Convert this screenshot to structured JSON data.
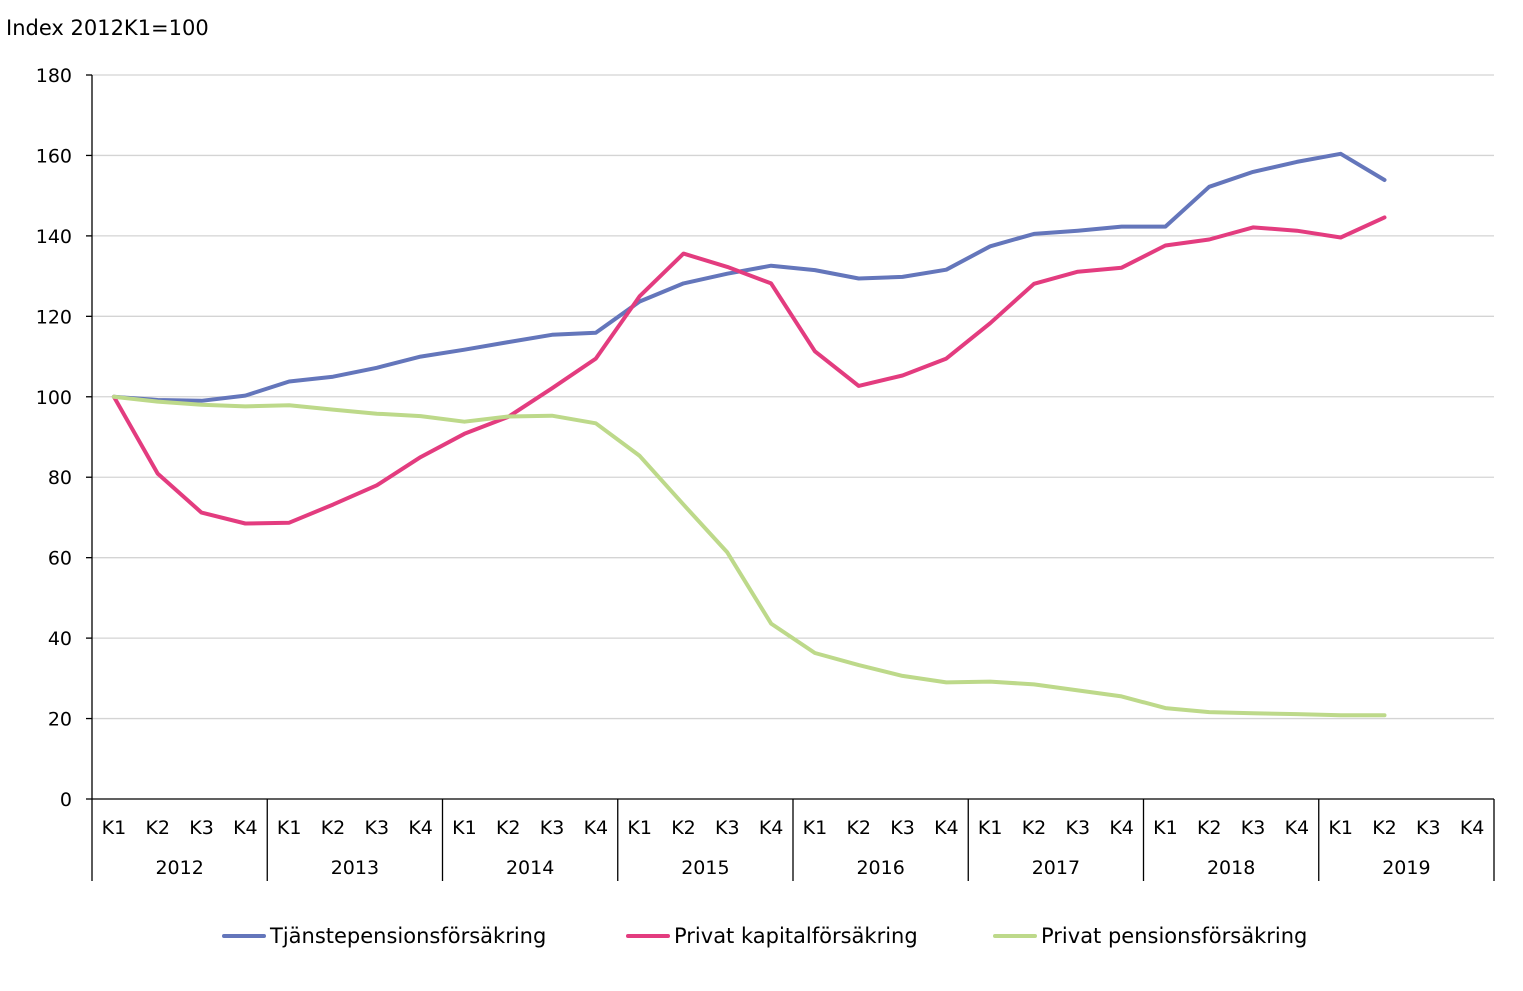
{
  "chart_data": {
    "type": "line",
    "ylabel": "Index 2012K1=100",
    "ylim": [
      0,
      180
    ],
    "yticks": [
      0,
      20,
      40,
      60,
      80,
      100,
      120,
      140,
      160,
      180
    ],
    "grid": true,
    "legend_position": "bottom",
    "years": [
      "2012",
      "2013",
      "2014",
      "2015",
      "2016",
      "2017",
      "2018",
      "2019"
    ],
    "quarters": [
      "K1",
      "K2",
      "K3",
      "K4"
    ],
    "series": [
      {
        "name": "Tjänstepensionsförsäkring",
        "color": "#6476BB",
        "values": [
          100,
          99.2,
          99.0,
          100.3,
          103.8,
          105.0,
          107.2,
          110.0,
          111.7,
          113.6,
          115.4,
          115.9,
          123.7,
          128.2,
          130.6,
          132.6,
          131.5,
          129.4,
          129.8,
          131.6,
          137.4,
          140.5,
          141.3,
          142.3,
          142.3,
          152.2,
          155.9,
          158.4,
          160.4,
          153.9
        ]
      },
      {
        "name": "Privat kapitalförsäkring",
        "color": "#E33C7F",
        "values": [
          100,
          80.9,
          71.2,
          68.5,
          68.7,
          73.2,
          78.0,
          85.0,
          90.8,
          95.0,
          102.1,
          109.5,
          125.0,
          135.6,
          132.3,
          128.2,
          111.3,
          102.7,
          105.3,
          109.5,
          118.3,
          128.1,
          131.1,
          132.1,
          137.6,
          139.1,
          142.1,
          141.3,
          139.6,
          144.6
        ]
      },
      {
        "name": "Privat pensionsförsäkring",
        "color": "#BDD98A",
        "values": [
          100,
          98.8,
          98.0,
          97.6,
          97.9,
          96.8,
          95.8,
          95.2,
          93.8,
          95.1,
          95.3,
          93.4,
          85.3,
          73.2,
          61.3,
          43.6,
          36.3,
          33.3,
          30.6,
          29.0,
          29.2,
          28.5,
          27.0,
          25.5,
          22.6,
          21.6,
          21.3,
          21.1,
          20.8,
          20.8
        ]
      }
    ]
  }
}
